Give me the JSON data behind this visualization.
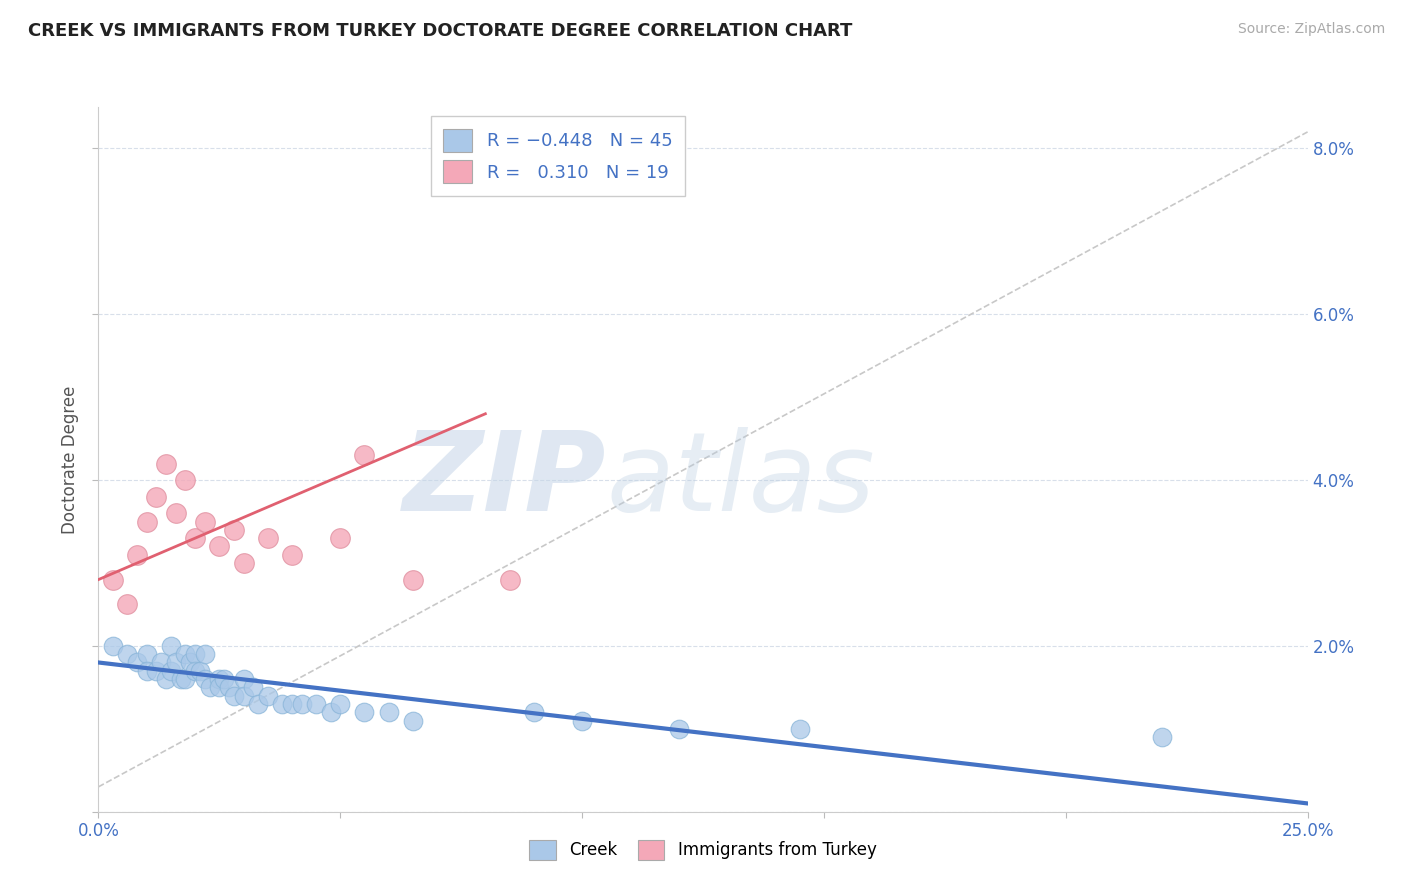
{
  "title": "CREEK VS IMMIGRANTS FROM TURKEY DOCTORATE DEGREE CORRELATION CHART",
  "source": "Source: ZipAtlas.com",
  "ylabel": "Doctorate Degree",
  "xlim": [
    0.0,
    0.25
  ],
  "ylim": [
    0.0,
    0.085
  ],
  "xticks": [
    0.0,
    0.05,
    0.1,
    0.15,
    0.2,
    0.25
  ],
  "yticks": [
    0.0,
    0.02,
    0.04,
    0.06,
    0.08
  ],
  "xticklabels": [
    "0.0%",
    "",
    "",
    "",
    "",
    "25.0%"
  ],
  "yticklabels": [
    "",
    "2.0%",
    "4.0%",
    "6.0%",
    "8.0%"
  ],
  "blue_color": "#aac8e8",
  "pink_color": "#f4a8b8",
  "line_blue_color": "#4472c4",
  "line_pink_color": "#e06070",
  "line_gray_color": "#c8c8c8",
  "watermark_zip": "ZIP",
  "watermark_atlas": "atlas",
  "blue_scatter_x": [
    0.003,
    0.006,
    0.008,
    0.01,
    0.01,
    0.012,
    0.013,
    0.014,
    0.015,
    0.015,
    0.016,
    0.017,
    0.018,
    0.018,
    0.019,
    0.02,
    0.02,
    0.021,
    0.022,
    0.022,
    0.023,
    0.025,
    0.025,
    0.026,
    0.027,
    0.028,
    0.03,
    0.03,
    0.032,
    0.033,
    0.035,
    0.038,
    0.04,
    0.042,
    0.045,
    0.048,
    0.05,
    0.055,
    0.06,
    0.065,
    0.09,
    0.1,
    0.12,
    0.145,
    0.22
  ],
  "blue_scatter_y": [
    0.02,
    0.019,
    0.018,
    0.019,
    0.017,
    0.017,
    0.018,
    0.016,
    0.02,
    0.017,
    0.018,
    0.016,
    0.019,
    0.016,
    0.018,
    0.019,
    0.017,
    0.017,
    0.019,
    0.016,
    0.015,
    0.016,
    0.015,
    0.016,
    0.015,
    0.014,
    0.016,
    0.014,
    0.015,
    0.013,
    0.014,
    0.013,
    0.013,
    0.013,
    0.013,
    0.012,
    0.013,
    0.012,
    0.012,
    0.011,
    0.012,
    0.011,
    0.01,
    0.01,
    0.009
  ],
  "pink_scatter_x": [
    0.003,
    0.006,
    0.008,
    0.01,
    0.012,
    0.014,
    0.016,
    0.018,
    0.02,
    0.022,
    0.025,
    0.028,
    0.03,
    0.035,
    0.04,
    0.05,
    0.055,
    0.065,
    0.085
  ],
  "pink_scatter_y": [
    0.028,
    0.025,
    0.031,
    0.035,
    0.038,
    0.042,
    0.036,
    0.04,
    0.033,
    0.035,
    0.032,
    0.034,
    0.03,
    0.033,
    0.031,
    0.033,
    0.043,
    0.028,
    0.028
  ],
  "blue_line_x0": 0.0,
  "blue_line_y0": 0.018,
  "blue_line_x1": 0.25,
  "blue_line_y1": 0.001,
  "pink_line_x0": 0.0,
  "pink_line_y0": 0.028,
  "pink_line_x1": 0.08,
  "pink_line_y1": 0.048,
  "gray_line_x0": 0.0,
  "gray_line_y0": 0.003,
  "gray_line_x1": 0.25,
  "gray_line_y1": 0.082
}
